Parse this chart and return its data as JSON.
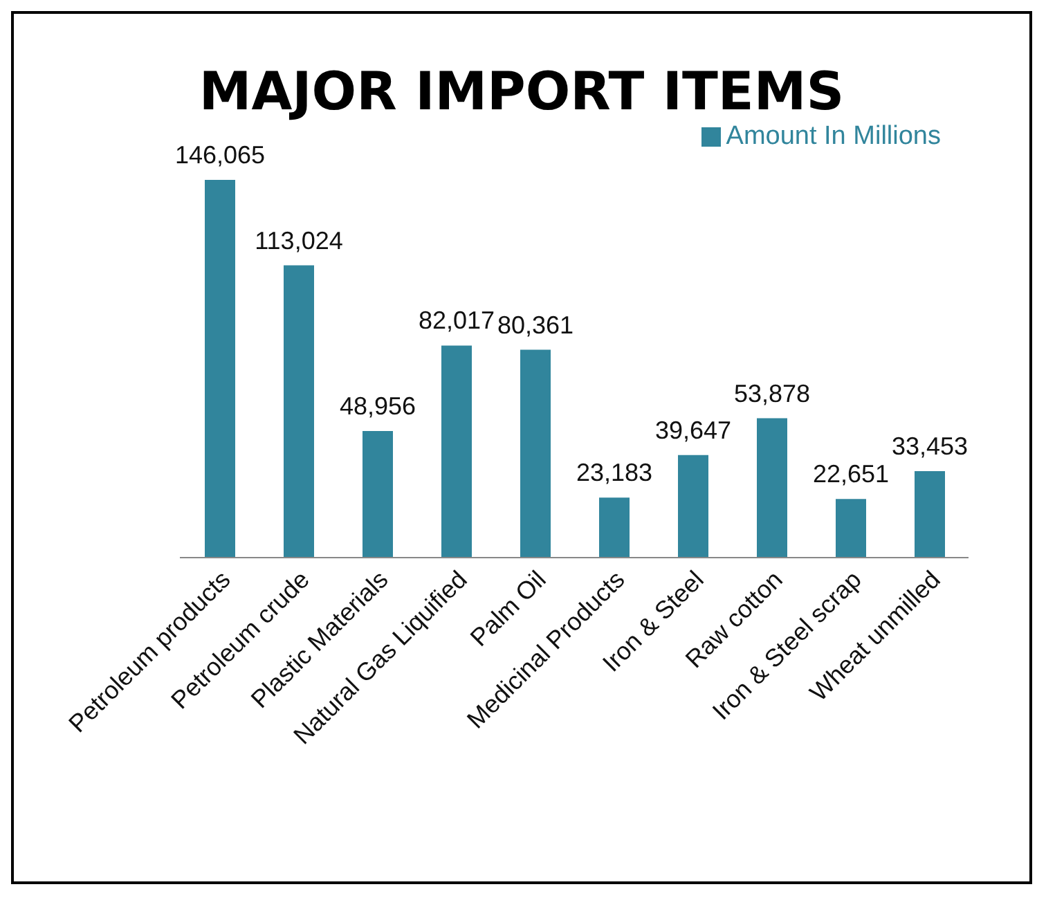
{
  "chart_data": {
    "type": "bar",
    "title": "MAJOR IMPORT ITEMS",
    "categories": [
      "Petroleum products",
      "Petroleum crude",
      "Plastic Materials",
      "Natural Gas Liquified",
      "Palm Oil",
      "Medicinal Products",
      "Iron & Steel",
      "Raw cotton",
      "Iron & Steel scrap",
      "Wheat unmilled"
    ],
    "series": [
      {
        "name": "Amount In Millions",
        "color": "#31859c",
        "values": [
          146065,
          113024,
          48956,
          82017,
          80361,
          23183,
          39647,
          53878,
          22651,
          33453
        ],
        "value_labels": [
          "146,065",
          "113,024",
          "48,956",
          "82,017",
          "80,361",
          "23,183",
          "39,647",
          "53,878",
          "22,651",
          "33,453"
        ]
      }
    ],
    "legend": "top right"
  }
}
